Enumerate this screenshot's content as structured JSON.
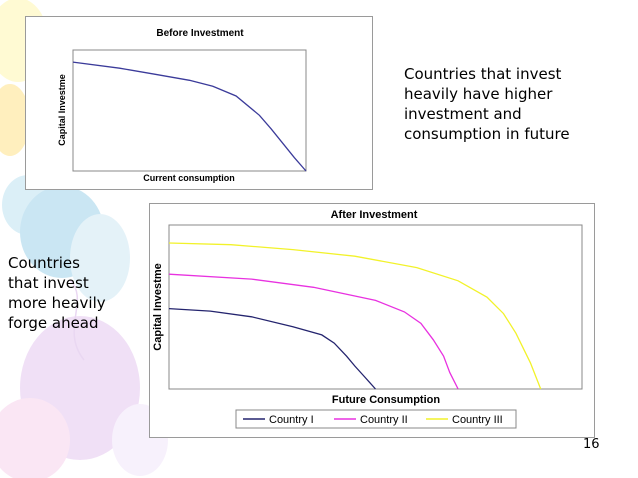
{
  "slide": {
    "right_text_lines": [
      "Countries that invest",
      "heavily have higher",
      "investment and",
      "consumption in future"
    ],
    "left_text_lines": [
      "Countries",
      "that invest",
      "more heavily",
      "forge ahead"
    ],
    "page_number": "16"
  },
  "colors": {
    "before_curve": "#3b3b9a",
    "country_1": "#24246e",
    "country_2": "#e832e0",
    "country_3": "#f2f22a"
  },
  "chart_data": [
    {
      "type": "line",
      "title": "Before Investment",
      "xlabel": "Current consumption",
      "ylabel": "Capital Investme",
      "xlim": [
        0,
        100
      ],
      "ylim": [
        0,
        100
      ],
      "grid": false,
      "legend": "none",
      "series": [
        {
          "x": [
            0,
            20,
            35,
            50,
            60,
            70,
            80,
            85,
            90,
            95,
            100
          ],
          "y": [
            90,
            85,
            80,
            75,
            70,
            62,
            46,
            35,
            23,
            11,
            0
          ]
        }
      ]
    },
    {
      "type": "line",
      "title": "After Investment",
      "xlabel": "Future Consumption",
      "ylabel": "Capital Investme",
      "xlim": [
        0,
        100
      ],
      "ylim": [
        0,
        100
      ],
      "grid": false,
      "legend": "bottom",
      "series": [
        {
          "name": "Country I",
          "x": [
            0,
            10,
            20,
            30,
            37,
            40,
            43,
            45,
            47.5,
            50
          ],
          "y": [
            49,
            47.5,
            44,
            38,
            33,
            28,
            20,
            14,
            7,
            0
          ]
        },
        {
          "name": "Country II",
          "x": [
            0,
            20,
            35,
            50,
            57,
            61,
            64,
            66.5,
            68,
            70
          ],
          "y": [
            70,
            67,
            62,
            54,
            47,
            40,
            30,
            20,
            10,
            0
          ]
        },
        {
          "name": "Country III",
          "x": [
            0,
            15,
            30,
            45,
            60,
            70,
            77,
            81,
            84,
            87.5,
            90
          ],
          "y": [
            89,
            88,
            85,
            81,
            74,
            66,
            56,
            46,
            34,
            16,
            0
          ]
        }
      ]
    }
  ]
}
